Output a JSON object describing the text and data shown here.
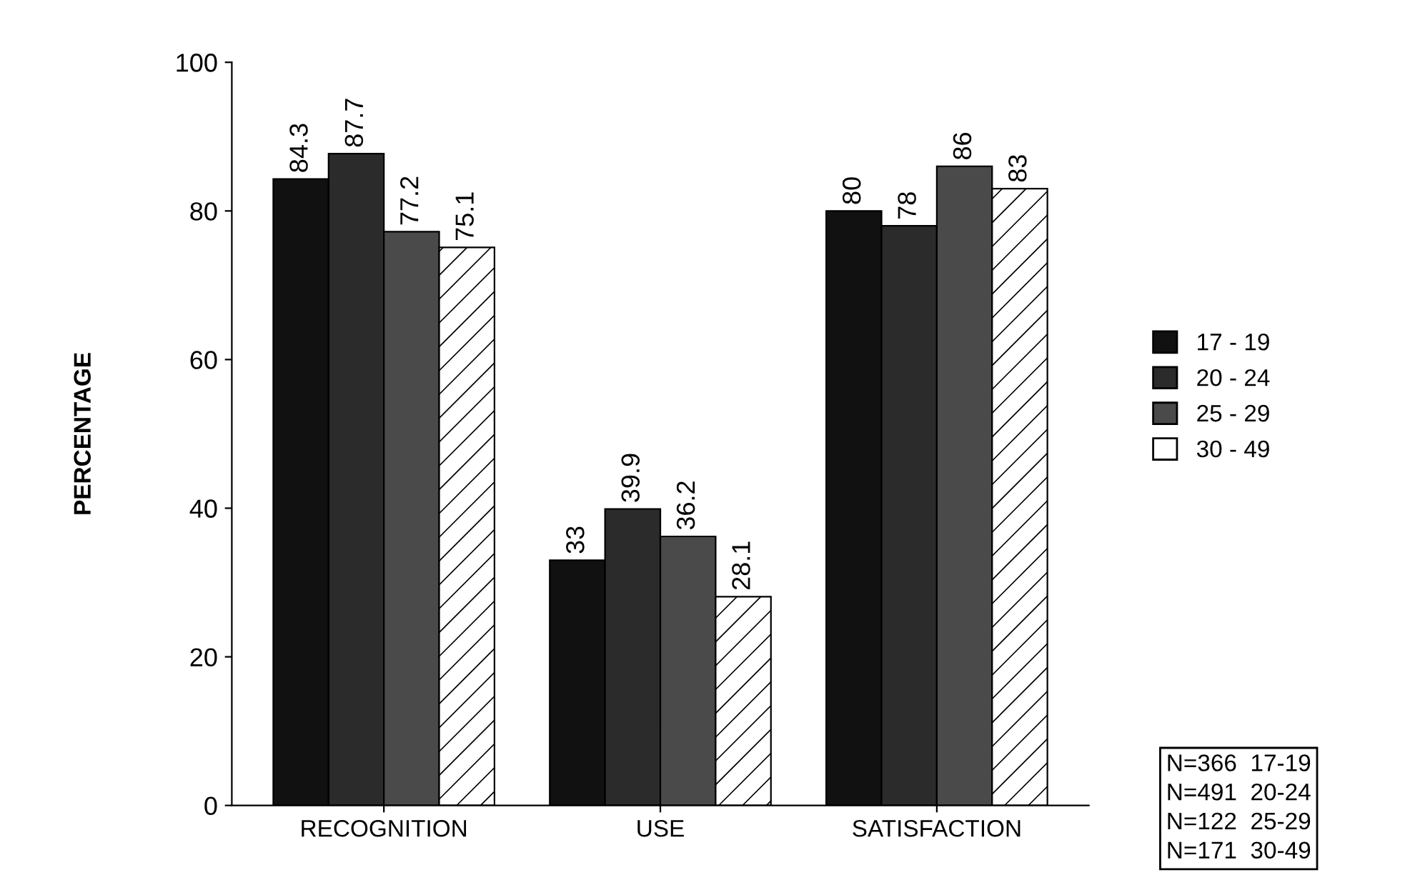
{
  "chart_data": {
    "type": "bar",
    "ylabel": "PERCENTAGE",
    "categories": [
      "RECOGNITION",
      "USE",
      "SATISFACTION"
    ],
    "series": [
      {
        "name": "17 - 19",
        "color": "#111111",
        "values": [
          84.3,
          33,
          80
        ]
      },
      {
        "name": "20 - 24",
        "color": "#2b2b2b",
        "values": [
          87.7,
          39.9,
          78
        ]
      },
      {
        "name": "25 - 29",
        "color": "#4a4a4a",
        "values": [
          77.2,
          36.2,
          86
        ]
      },
      {
        "name": "30 - 49",
        "color": "#ffffff",
        "values": [
          75.1,
          28.1,
          83
        ]
      }
    ],
    "ylim": [
      0,
      100
    ],
    "yticks": [
      0,
      20,
      40,
      60,
      80,
      100
    ],
    "grid": false,
    "legend": "right",
    "data_labels": true,
    "annotations": [
      "N=366  17-19",
      "N=491  20-24",
      "N=122  25-29",
      "N=171  30-49"
    ]
  }
}
